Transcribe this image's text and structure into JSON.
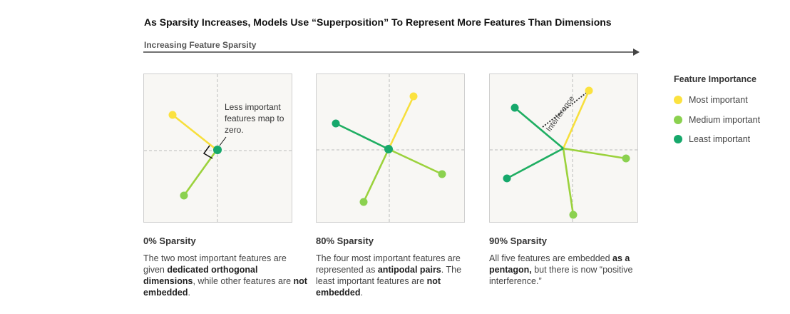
{
  "title": "As Sparsity Increases, Models Use “Superposition” To Represent More Features Than Dimensions",
  "axis": {
    "label": "Increasing Feature Sparsity"
  },
  "legend": {
    "title": "Feature Importance",
    "items": [
      {
        "label": "Most important",
        "color": "#fbe23f"
      },
      {
        "label": "Medium important",
        "color": "#8bd14f"
      },
      {
        "label": "Least important",
        "color": "#16a86b"
      }
    ]
  },
  "panels": [
    {
      "heading": "0% Sparsity",
      "annotation": "Less important features map to zero.",
      "desc": [
        {
          "text": "The two most important features are given "
        },
        {
          "text": "dedicated orthogonal dimensions",
          "bold": true
        },
        {
          "text": ", while other features are "
        },
        {
          "text": "not embedded",
          "bold": true
        },
        {
          "text": "."
        }
      ]
    },
    {
      "heading": "80% Sparsity",
      "desc": [
        {
          "text": "The four most important features are represented as "
        },
        {
          "text": "antipodal pairs",
          "bold": true
        },
        {
          "text": ". The least important features are "
        },
        {
          "text": "not embedded",
          "bold": true
        },
        {
          "text": "."
        }
      ]
    },
    {
      "heading": "90% Sparsity",
      "interference_label": "Interference",
      "desc": [
        {
          "text": "All five features are embedded "
        },
        {
          "text": "as a pentagon,",
          "bold": true
        },
        {
          "text": " but there is now “positive interference.”"
        }
      ]
    }
  ],
  "colors": {
    "yellow": "#fbe23f",
    "lime": "#8bd14f",
    "green": "#16a86b",
    "yellow_line": "#f7df3c",
    "lime_line": "#9bd23c",
    "green_line": "#1fae62"
  }
}
